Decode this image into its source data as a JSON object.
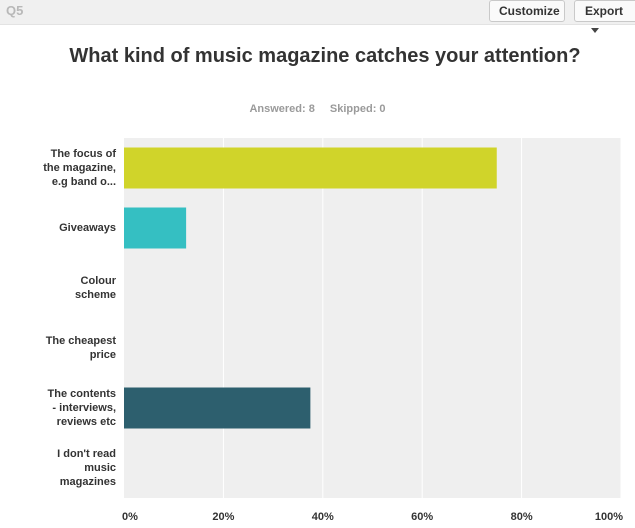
{
  "header": {
    "question_number": "Q5",
    "customize_label": "Customize",
    "export_label": "Export"
  },
  "summary": {
    "answered": "Answered: 8",
    "skipped": "Skipped: 0"
  },
  "colors": {
    "plot_background": "#efefef",
    "gridline": "#ffffff"
  },
  "chart_data": {
    "type": "bar",
    "orientation": "horizontal",
    "title": "What kind of music magazine catches your attention?",
    "categories": [
      "The focus of the magazine, e.g band o...",
      "Giveaways",
      "Colour scheme",
      "The cheapest price",
      "The contents - interviews, reviews etc",
      "I don't read music magazines"
    ],
    "category_lines": [
      [
        "The focus of",
        "the magazine,",
        "e.g band o..."
      ],
      [
        "Giveaways"
      ],
      [
        "Colour",
        "scheme"
      ],
      [
        "The cheapest",
        "price"
      ],
      [
        "The contents",
        "- interviews,",
        "reviews etc"
      ],
      [
        "I don't read",
        "music",
        "magazines"
      ]
    ],
    "values": [
      75,
      12.5,
      0,
      0,
      37.5,
      0
    ],
    "bar_colors": [
      "#d0d42a",
      "#35bfc2",
      "#999999",
      "#999999",
      "#2d5f6e",
      "#999999"
    ],
    "xlim": [
      0,
      100
    ],
    "x_ticks": [
      0,
      20,
      40,
      60,
      80,
      100
    ],
    "x_tick_labels": [
      "0%",
      "20%",
      "40%",
      "60%",
      "80%",
      "100%"
    ],
    "grid": true,
    "legend": "none"
  }
}
